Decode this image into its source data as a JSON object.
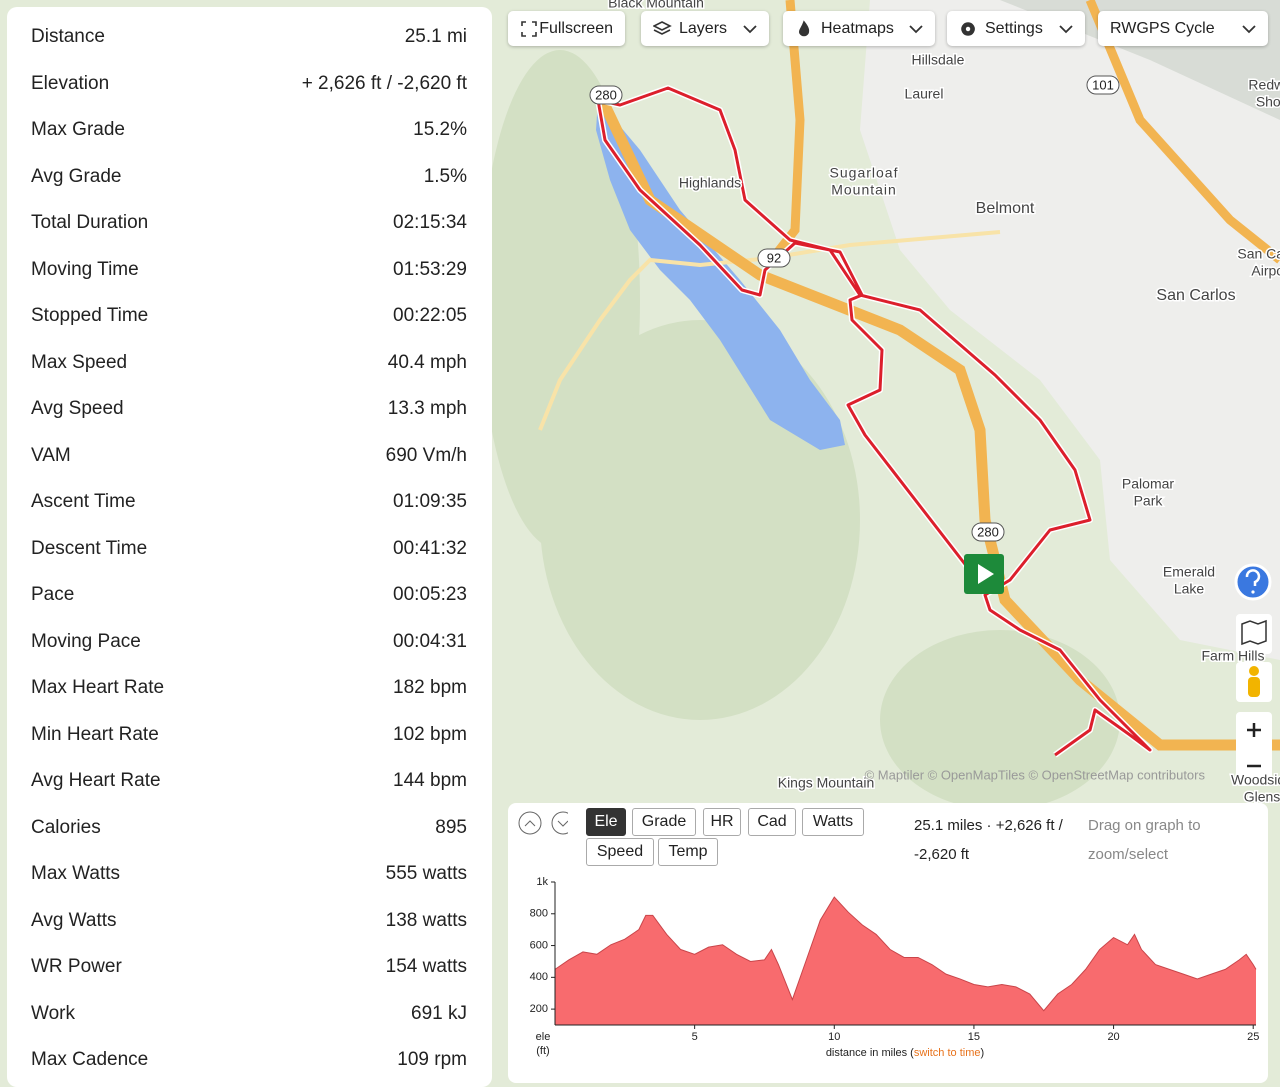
{
  "stats": {
    "groups": [
      {
        "rows": [
          {
            "label": "Distance",
            "value": "25.1 mi"
          },
          {
            "label": "Elevation",
            "value": "+ 2,626 ft / -2,620 ft"
          },
          {
            "label": "Max Grade",
            "value": "15.2%"
          },
          {
            "label": "Avg Grade",
            "value": "1.5%"
          }
        ]
      },
      {
        "rows": [
          {
            "label": "Total Duration",
            "value": "02:15:34"
          },
          {
            "label": "Moving Time",
            "value": "01:53:29"
          },
          {
            "label": "Stopped Time",
            "value": "00:22:05"
          }
        ]
      },
      {
        "rows": [
          {
            "label": "Max Speed",
            "value": "40.4 mph"
          },
          {
            "label": "Avg Speed",
            "value": "13.3 mph"
          }
        ]
      },
      {
        "rows": [
          {
            "label": "VAM",
            "value": "690 Vm/h"
          },
          {
            "label": "Ascent Time",
            "value": "01:09:35"
          },
          {
            "label": "Descent Time",
            "value": "00:41:32"
          }
        ]
      },
      {
        "rows": [
          {
            "label": "Pace",
            "value": "00:05:23"
          },
          {
            "label": "Moving Pace",
            "value": "00:04:31"
          }
        ]
      },
      {
        "rows": [
          {
            "label": "Max Heart Rate",
            "value": "182 bpm"
          },
          {
            "label": "Min Heart Rate",
            "value": "102 bpm"
          },
          {
            "label": "Avg Heart Rate",
            "value": "144 bpm"
          }
        ]
      },
      {
        "rows": [
          {
            "label": "Calories",
            "value": "895"
          },
          {
            "label": "Max Watts",
            "value": "555 watts"
          },
          {
            "label": "Avg Watts",
            "value": "138 watts"
          },
          {
            "label": "WR Power",
            "value": "154 watts"
          },
          {
            "label": "Work",
            "value": "691 kJ"
          }
        ]
      },
      {
        "rows": [
          {
            "label": "Max Cadence",
            "value": "109 rpm"
          }
        ]
      }
    ]
  },
  "toolbar": {
    "buttons": [
      "Fullscreen",
      "Layers",
      "Heatmaps",
      "Settings",
      "RWGPS Cycle"
    ]
  },
  "map": {
    "labels": [
      {
        "lines": [
          "Black Mountain"
        ]
      },
      {
        "lines": [
          "Hillsdale"
        ]
      },
      {
        "lines": [
          "Laurel"
        ]
      },
      {
        "lines": [
          "Highlands"
        ]
      },
      {
        "lines": [
          "Sugarloaf",
          "Mountain"
        ]
      },
      {
        "lines": [
          "Belmont"
        ]
      },
      {
        "lines": [
          "San Carlos"
        ]
      },
      {
        "lines": [
          "Palomar",
          "Park"
        ]
      },
      {
        "lines": [
          "Emerald",
          "Lake"
        ]
      },
      {
        "lines": [
          "Farm Hills"
        ]
      },
      {
        "lines": [
          "Kings Mountain"
        ]
      },
      {
        "lines": [
          "Redwood",
          "Shores"
        ]
      },
      {
        "lines": [
          "San Carlos",
          "Airport"
        ]
      },
      {
        "lines": [
          "Woodside",
          "Glens"
        ]
      }
    ],
    "shields": [
      "280",
      "92",
      "101",
      "280"
    ],
    "attribution": "© Maptiler © OpenMapTiles © OpenStreetMap contributors"
  },
  "elevation_panel": {
    "tabs": [
      "Ele",
      "Grade",
      "HR",
      "Cad",
      "Watts",
      "Speed",
      "Temp"
    ],
    "active_tab": 0,
    "summary": "25.1 miles · +2,626 ft / -2,620 ft",
    "hint": "Drag on graph to zoom/select",
    "chart_data": {
      "type": "area",
      "color": "#f86b6e",
      "x": [
        0,
        0.5,
        1,
        1.5,
        2,
        2.5,
        3,
        3.25,
        3.5,
        3.75,
        4,
        4.5,
        5,
        5.5,
        6,
        6.5,
        7,
        7.5,
        7.75,
        8,
        8.5,
        9,
        9.5,
        10,
        10.5,
        11,
        11.5,
        12,
        12.5,
        13,
        13.5,
        14,
        14.5,
        15,
        15.5,
        16,
        16.5,
        17,
        17.5,
        18,
        18.5,
        19,
        19.5,
        20,
        20.5,
        20.75,
        21,
        21.5,
        22,
        22.5,
        23,
        23.5,
        24,
        24.5,
        24.75,
        25,
        25.1
      ],
      "values": [
        450,
        510,
        560,
        545,
        605,
        640,
        700,
        790,
        790,
        730,
        670,
        575,
        545,
        590,
        605,
        545,
        500,
        510,
        575,
        480,
        260,
        510,
        760,
        905,
        810,
        730,
        670,
        575,
        525,
        525,
        480,
        420,
        390,
        355,
        340,
        355,
        340,
        295,
        190,
        295,
        355,
        450,
        575,
        650,
        605,
        670,
        575,
        480,
        450,
        420,
        390,
        420,
        450,
        510,
        545,
        480,
        450
      ],
      "xlim": [
        0,
        25.1
      ],
      "ylim": [
        100,
        1000
      ],
      "xticks": [
        5,
        10,
        15,
        20,
        25
      ],
      "yticks": [
        200,
        400,
        600,
        800,
        {
          "value": 1000,
          "label": "1k"
        }
      ],
      "y_label": "ele",
      "y_unit": "(ft)",
      "x_label": "distance in miles (",
      "x_label_link": "switch to time",
      "x_label_close": ")"
    }
  }
}
